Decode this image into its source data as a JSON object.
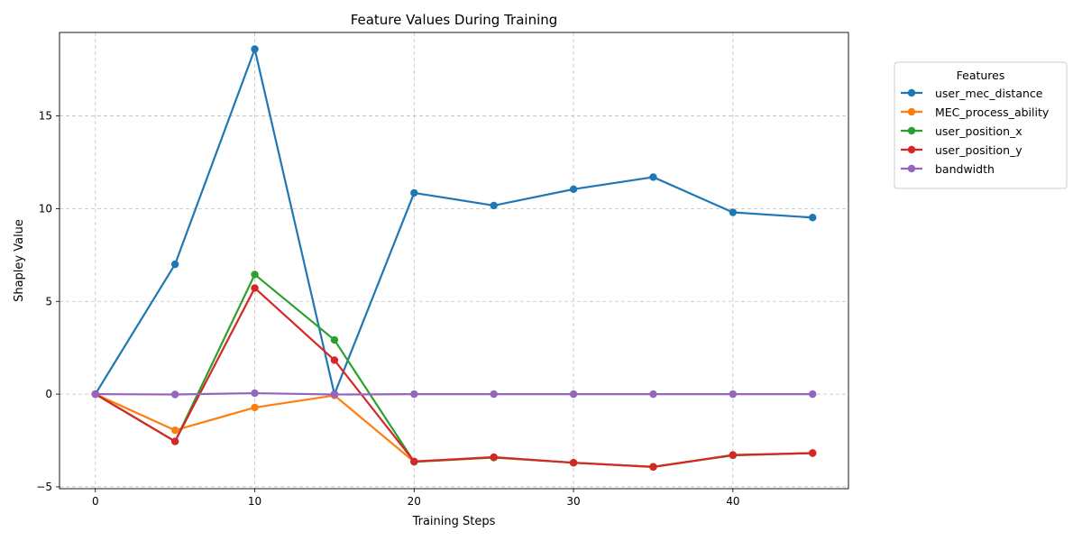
{
  "chart_data": {
    "type": "line",
    "title": "Feature Values During Training",
    "xlabel": "Training Steps",
    "ylabel": "Shapley Value",
    "x": [
      0,
      5,
      10,
      15,
      20,
      25,
      30,
      35,
      40,
      45
    ],
    "xlim": [
      -2.25,
      47.25
    ],
    "ylim": [
      -5.1,
      19.5
    ],
    "xticks": [
      0,
      10,
      20,
      30,
      40
    ],
    "yticks": [
      -5,
      0,
      5,
      10,
      15
    ],
    "grid": true,
    "legend": {
      "title": "Features",
      "placement": "outside-top-right"
    },
    "series": [
      {
        "name": "user_mec_distance",
        "color": "#1f77b4",
        "values": [
          0,
          7.0,
          18.6,
          0,
          10.85,
          10.17,
          11.05,
          11.7,
          9.8,
          9.52
        ]
      },
      {
        "name": "MEC_process_ability",
        "color": "#ff7f0e",
        "values": [
          0,
          -1.95,
          -0.72,
          -0.07,
          -3.65,
          -3.42,
          -3.7,
          -3.92,
          -3.3,
          -3.18
        ]
      },
      {
        "name": "user_position_x",
        "color": "#2ca02c",
        "values": [
          0,
          -2.55,
          6.45,
          2.92,
          -3.65,
          -3.42,
          -3.7,
          -3.92,
          -3.3,
          -3.18
        ]
      },
      {
        "name": "user_position_y",
        "color": "#d62728",
        "values": [
          0,
          -2.55,
          5.72,
          1.83,
          -3.63,
          -3.4,
          -3.7,
          -3.93,
          -3.28,
          -3.18
        ]
      },
      {
        "name": "bandwidth",
        "color": "#9467bd",
        "values": [
          0,
          -0.02,
          0.05,
          -0.02,
          0,
          0,
          0,
          0,
          0,
          0
        ]
      }
    ]
  }
}
